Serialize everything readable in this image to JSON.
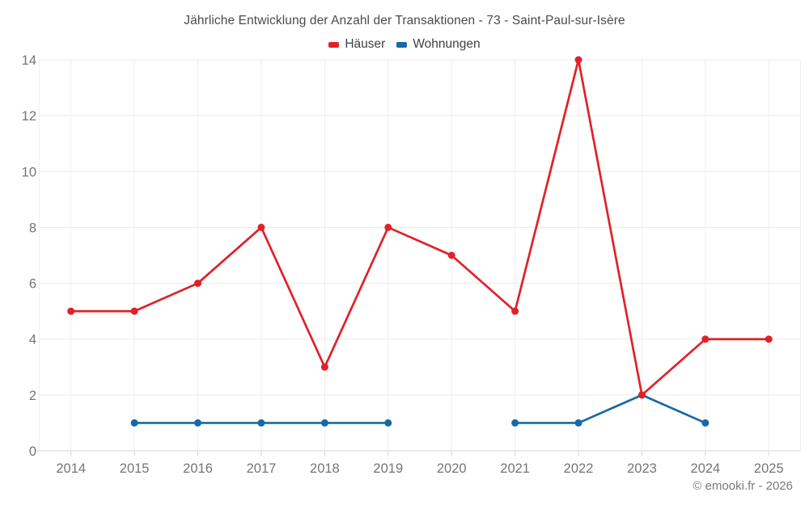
{
  "chart_data": {
    "type": "line",
    "title": "Jährliche Entwicklung der Anzahl der Transaktionen - 73 - Saint-Paul-sur-Isère",
    "categories": [
      "2014",
      "2015",
      "2016",
      "2017",
      "2018",
      "2019",
      "2020",
      "2021",
      "2022",
      "2023",
      "2024",
      "2025"
    ],
    "series": [
      {
        "name": "Häuser",
        "color": "#e02128",
        "values": [
          5,
          5,
          6,
          8,
          3,
          8,
          7,
          5,
          14,
          2,
          4,
          4
        ]
      },
      {
        "name": "Wohnungen",
        "color": "#1769a5",
        "values": [
          null,
          1,
          1,
          1,
          1,
          1,
          null,
          1,
          1,
          2,
          1,
          null
        ]
      }
    ],
    "xlabel": "",
    "ylabel": "",
    "ylim": [
      0,
      14
    ],
    "yticks": [
      0,
      2,
      4,
      6,
      8,
      10,
      12,
      14
    ],
    "grid": true,
    "legend_position": "top",
    "credit": "© emooki.fr - 2026"
  }
}
